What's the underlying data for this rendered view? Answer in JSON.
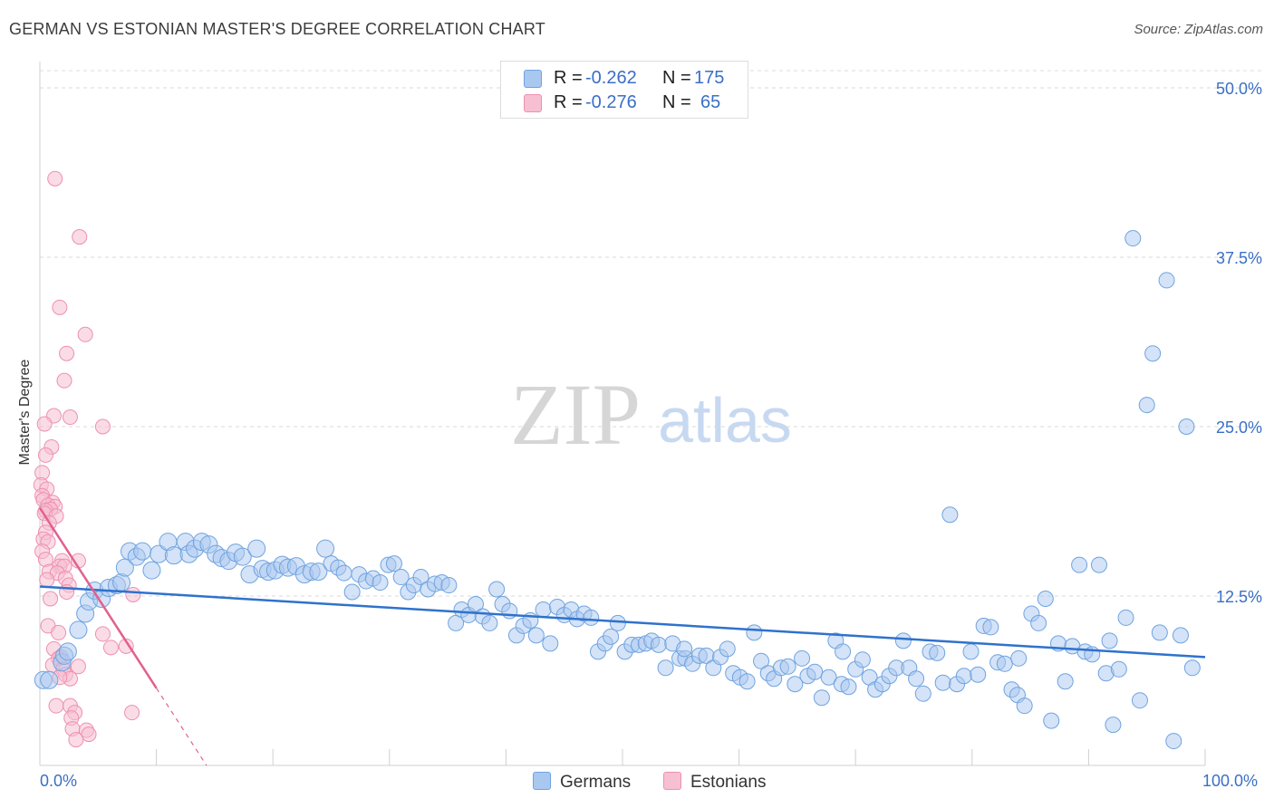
{
  "title": "GERMAN VS ESTONIAN MASTER'S DEGREE CORRELATION CHART",
  "source": "Source: ZipAtlas.com",
  "watermark": {
    "zip": "ZIP",
    "atlas": "atlas"
  },
  "colors": {
    "blue": "#6fa3e0",
    "blue_fill": "#a9c8f0",
    "blue_line": "#2f72cc",
    "pink": "#ee8fb0",
    "pink_fill": "#f6c0d2",
    "pink_line": "#e2608f",
    "tick_text": "#3a6fc6",
    "grid": "#d8d8d8"
  },
  "legend": {
    "row1": {
      "r_label": "R = ",
      "r_value": "-0.262",
      "n_label": "N = ",
      "n_value": "175"
    },
    "row2": {
      "r_label": "R = ",
      "r_value": "-0.276",
      "n_label": "N = ",
      "n_value": "65"
    }
  },
  "chart_data": {
    "type": "scatter",
    "title": "GERMAN VS ESTONIAN MASTER'S DEGREE CORRELATION CHART",
    "xlabel": "",
    "ylabel": "Master's Degree",
    "xlim": [
      0,
      100
    ],
    "ylim": [
      0,
      50
    ],
    "x_tick_labels": [
      "0.0%",
      "100.0%"
    ],
    "y_ticks": [
      12.5,
      25.0,
      37.5,
      50.0
    ],
    "y_tick_labels": [
      "12.5%",
      "25.0%",
      "37.5%",
      "50.0%"
    ],
    "series": [
      {
        "name": "Germans",
        "color": "#6fa3e0",
        "trend": {
          "x0": 0,
          "y0": 13.2,
          "x1": 100,
          "y1": 8.0
        },
        "points": [
          [
            0.3,
            6.3
          ],
          [
            0.8,
            6.3
          ],
          [
            1.9,
            7.6
          ],
          [
            2.1,
            8.1
          ],
          [
            2.4,
            8.4
          ],
          [
            3.3,
            10.0
          ],
          [
            3.9,
            11.2
          ],
          [
            4.2,
            12.1
          ],
          [
            4.7,
            12.9
          ],
          [
            5.3,
            12.3
          ],
          [
            5.9,
            13.1
          ],
          [
            6.6,
            13.3
          ],
          [
            7.0,
            13.5
          ],
          [
            7.3,
            14.6
          ],
          [
            7.7,
            15.8
          ],
          [
            8.3,
            15.4
          ],
          [
            8.8,
            15.8
          ],
          [
            9.6,
            14.4
          ],
          [
            10.2,
            15.6
          ],
          [
            11.0,
            16.5
          ],
          [
            11.5,
            15.5
          ],
          [
            12.5,
            16.5
          ],
          [
            12.8,
            15.6
          ],
          [
            13.3,
            16.0
          ],
          [
            13.9,
            16.5
          ],
          [
            14.5,
            16.3
          ],
          [
            15.1,
            15.6
          ],
          [
            15.6,
            15.3
          ],
          [
            16.2,
            15.1
          ],
          [
            16.8,
            15.7
          ],
          [
            17.4,
            15.4
          ],
          [
            18.0,
            14.1
          ],
          [
            18.6,
            16.0
          ],
          [
            19.1,
            14.5
          ],
          [
            19.6,
            14.3
          ],
          [
            20.2,
            14.4
          ],
          [
            20.8,
            14.8
          ],
          [
            21.3,
            14.6
          ],
          [
            22.0,
            14.7
          ],
          [
            22.7,
            14.1
          ],
          [
            23.3,
            14.3
          ],
          [
            23.9,
            14.3
          ],
          [
            24.5,
            16.0
          ],
          [
            25.0,
            14.9
          ],
          [
            25.6,
            14.6
          ],
          [
            26.1,
            14.2
          ],
          [
            26.8,
            12.8
          ],
          [
            27.4,
            14.1
          ],
          [
            28.0,
            13.6
          ],
          [
            28.6,
            13.8
          ],
          [
            29.2,
            13.5
          ],
          [
            29.9,
            14.8
          ],
          [
            30.4,
            14.9
          ],
          [
            31.0,
            13.9
          ],
          [
            31.6,
            12.8
          ],
          [
            32.1,
            13.3
          ],
          [
            32.7,
            13.9
          ],
          [
            33.3,
            13.0
          ],
          [
            33.9,
            13.4
          ],
          [
            34.5,
            13.5
          ],
          [
            35.1,
            13.3
          ],
          [
            35.7,
            10.5
          ],
          [
            36.2,
            11.5
          ],
          [
            36.8,
            11.1
          ],
          [
            37.4,
            11.9
          ],
          [
            38.0,
            11.0
          ],
          [
            38.6,
            10.5
          ],
          [
            39.2,
            13.0
          ],
          [
            39.7,
            11.9
          ],
          [
            40.3,
            11.4
          ],
          [
            40.9,
            9.6
          ],
          [
            41.5,
            10.3
          ],
          [
            42.1,
            10.7
          ],
          [
            42.6,
            9.6
          ],
          [
            43.2,
            11.5
          ],
          [
            43.8,
            9.0
          ],
          [
            44.4,
            11.7
          ],
          [
            45.0,
            11.1
          ],
          [
            45.6,
            11.5
          ],
          [
            46.1,
            10.8
          ],
          [
            46.7,
            11.2
          ],
          [
            47.3,
            10.9
          ],
          [
            47.9,
            8.4
          ],
          [
            48.5,
            9.0
          ],
          [
            49.0,
            9.5
          ],
          [
            49.6,
            10.5
          ],
          [
            50.2,
            8.4
          ],
          [
            50.8,
            8.9
          ],
          [
            51.4,
            8.9
          ],
          [
            52.0,
            9.0
          ],
          [
            52.5,
            9.2
          ],
          [
            53.1,
            8.9
          ],
          [
            53.7,
            7.2
          ],
          [
            54.3,
            9.0
          ],
          [
            54.9,
            7.9
          ],
          [
            55.4,
            7.9
          ],
          [
            56.0,
            7.5
          ],
          [
            56.6,
            8.1
          ],
          [
            57.2,
            8.1
          ],
          [
            57.8,
            7.2
          ],
          [
            58.4,
            8.0
          ],
          [
            59.0,
            8.6
          ],
          [
            59.5,
            6.8
          ],
          [
            60.1,
            6.5
          ],
          [
            60.7,
            6.2
          ],
          [
            61.3,
            9.8
          ],
          [
            61.9,
            7.7
          ],
          [
            62.5,
            6.8
          ],
          [
            63.0,
            6.4
          ],
          [
            63.6,
            7.2
          ],
          [
            64.2,
            7.3
          ],
          [
            64.8,
            6.0
          ],
          [
            65.4,
            7.9
          ],
          [
            65.9,
            6.6
          ],
          [
            66.5,
            6.9
          ],
          [
            67.1,
            5.0
          ],
          [
            67.7,
            6.5
          ],
          [
            68.3,
            9.2
          ],
          [
            68.8,
            6.0
          ],
          [
            69.4,
            5.8
          ],
          [
            70.0,
            7.1
          ],
          [
            70.6,
            7.8
          ],
          [
            71.2,
            6.5
          ],
          [
            71.7,
            5.6
          ],
          [
            72.3,
            6.0
          ],
          [
            72.9,
            6.6
          ],
          [
            73.5,
            7.2
          ],
          [
            74.1,
            9.2
          ],
          [
            74.6,
            7.2
          ],
          [
            75.2,
            6.4
          ],
          [
            75.8,
            5.3
          ],
          [
            76.4,
            8.4
          ],
          [
            77.0,
            8.3
          ],
          [
            77.5,
            6.1
          ],
          [
            78.1,
            18.5
          ],
          [
            78.7,
            6.0
          ],
          [
            79.3,
            6.6
          ],
          [
            79.9,
            8.4
          ],
          [
            80.5,
            6.7
          ],
          [
            81.0,
            10.3
          ],
          [
            81.6,
            10.2
          ],
          [
            82.2,
            7.6
          ],
          [
            82.8,
            7.5
          ],
          [
            83.4,
            5.6
          ],
          [
            83.9,
            5.2
          ],
          [
            84.5,
            4.4
          ],
          [
            85.1,
            11.2
          ],
          [
            85.7,
            10.5
          ],
          [
            86.3,
            12.3
          ],
          [
            86.8,
            3.3
          ],
          [
            87.4,
            9.0
          ],
          [
            88.0,
            6.2
          ],
          [
            88.6,
            8.8
          ],
          [
            89.2,
            14.8
          ],
          [
            89.7,
            8.4
          ],
          [
            90.3,
            8.2
          ],
          [
            90.9,
            14.8
          ],
          [
            91.5,
            6.8
          ],
          [
            92.1,
            3.0
          ],
          [
            92.6,
            7.1
          ],
          [
            93.2,
            10.9
          ],
          [
            93.8,
            38.9
          ],
          [
            94.4,
            4.8
          ],
          [
            95.0,
            26.6
          ],
          [
            95.5,
            30.4
          ],
          [
            96.1,
            9.8
          ],
          [
            96.7,
            35.8
          ],
          [
            97.3,
            1.8
          ],
          [
            97.9,
            9.6
          ],
          [
            98.4,
            25.0
          ],
          [
            98.9,
            7.2
          ],
          [
            91.8,
            9.2
          ],
          [
            84.0,
            7.9
          ],
          [
            68.9,
            8.4
          ],
          [
            55.3,
            8.6
          ]
        ]
      },
      {
        "name": "Estonians",
        "color": "#ee8fb0",
        "trend": {
          "x0": 0,
          "y0": 19.0,
          "x1": 10.0,
          "y1": 5.7
        },
        "trend_dashed": {
          "x0": 10.0,
          "y0": 5.7,
          "x1": 14.3,
          "y1": 0.0
        },
        "points": [
          [
            1.3,
            43.3
          ],
          [
            3.4,
            39.0
          ],
          [
            1.7,
            33.8
          ],
          [
            3.9,
            31.8
          ],
          [
            2.3,
            30.4
          ],
          [
            2.1,
            28.4
          ],
          [
            1.2,
            25.8
          ],
          [
            2.6,
            25.7
          ],
          [
            5.4,
            25.0
          ],
          [
            0.4,
            25.2
          ],
          [
            1.0,
            23.5
          ],
          [
            0.5,
            22.9
          ],
          [
            0.2,
            21.6
          ],
          [
            0.1,
            20.7
          ],
          [
            0.6,
            20.4
          ],
          [
            0.2,
            19.9
          ],
          [
            0.3,
            19.6
          ],
          [
            1.1,
            19.4
          ],
          [
            0.7,
            19.2
          ],
          [
            1.3,
            19.1
          ],
          [
            0.9,
            18.9
          ],
          [
            0.5,
            18.8
          ],
          [
            0.4,
            18.6
          ],
          [
            1.4,
            18.4
          ],
          [
            0.8,
            17.9
          ],
          [
            0.5,
            17.2
          ],
          [
            0.3,
            16.7
          ],
          [
            0.7,
            16.5
          ],
          [
            0.2,
            15.8
          ],
          [
            0.5,
            15.2
          ],
          [
            1.9,
            15.1
          ],
          [
            1.7,
            14.7
          ],
          [
            2.1,
            14.7
          ],
          [
            0.8,
            14.3
          ],
          [
            1.5,
            14.2
          ],
          [
            0.6,
            13.7
          ],
          [
            2.2,
            13.8
          ],
          [
            2.5,
            13.3
          ],
          [
            3.3,
            15.1
          ],
          [
            0.9,
            12.3
          ],
          [
            2.3,
            12.8
          ],
          [
            8.0,
            12.6
          ],
          [
            0.7,
            10.3
          ],
          [
            1.6,
            9.8
          ],
          [
            5.4,
            9.7
          ],
          [
            6.1,
            8.7
          ],
          [
            7.4,
            8.8
          ],
          [
            1.2,
            8.6
          ],
          [
            1.8,
            8.0
          ],
          [
            1.6,
            7.9
          ],
          [
            3.3,
            7.3
          ],
          [
            1.1,
            7.4
          ],
          [
            2.0,
            7.1
          ],
          [
            2.2,
            6.7
          ],
          [
            2.6,
            6.4
          ],
          [
            1.7,
            6.5
          ],
          [
            1.4,
            4.4
          ],
          [
            2.6,
            4.4
          ],
          [
            3.0,
            3.9
          ],
          [
            2.7,
            3.5
          ],
          [
            7.9,
            3.9
          ],
          [
            2.8,
            2.7
          ],
          [
            4.0,
            2.6
          ],
          [
            4.2,
            2.3
          ],
          [
            3.1,
            1.9
          ]
        ]
      }
    ]
  },
  "bottom_legend": {
    "germans": "Germans",
    "estonians": "Estonians"
  }
}
